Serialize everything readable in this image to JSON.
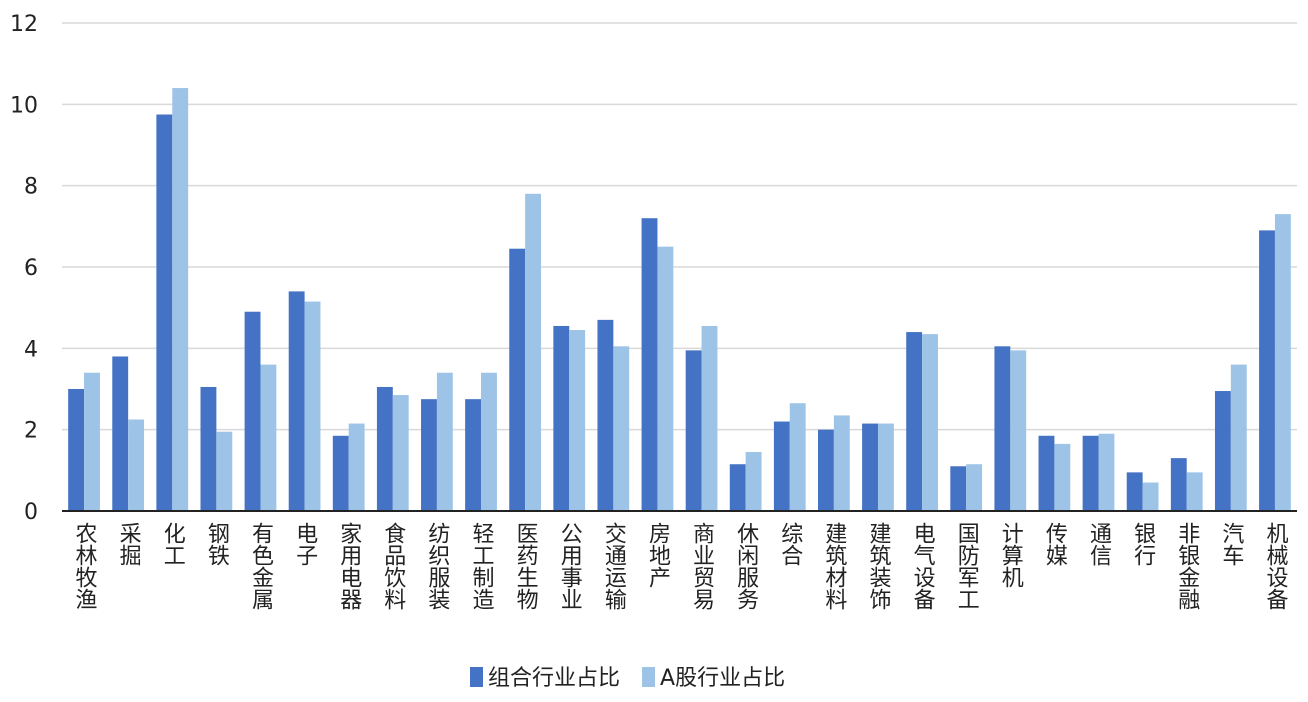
{
  "chart_data": {
    "type": "bar",
    "categories": [
      "农林牧渔",
      "采掘",
      "化工",
      "钢铁",
      "有色金属",
      "电子",
      "家用电器",
      "食品饮料",
      "纺织服装",
      "轻工制造",
      "医药生物",
      "公用事业",
      "交通运输",
      "房地产",
      "商业贸易",
      "休闲服务",
      "综合",
      "建筑材料",
      "建筑装饰",
      "电气设备",
      "国防军工",
      "计算机",
      "传媒",
      "通信",
      "银行",
      "非银金融",
      "汽车",
      "机械设备"
    ],
    "series": [
      {
        "name": "组合行业占比",
        "color": "#4472c4",
        "values": [
          3.0,
          3.8,
          9.75,
          3.05,
          4.9,
          5.4,
          1.85,
          3.05,
          2.75,
          2.75,
          6.45,
          4.55,
          4.7,
          7.2,
          3.95,
          1.15,
          2.2,
          2.0,
          2.15,
          4.4,
          1.1,
          4.05,
          1.85,
          1.85,
          0.95,
          1.3,
          2.95,
          6.9
        ]
      },
      {
        "name": "A股行业占比",
        "color": "#9dc3e6",
        "values": [
          3.4,
          2.25,
          10.4,
          1.95,
          3.6,
          5.15,
          2.15,
          2.85,
          3.4,
          3.4,
          7.8,
          4.45,
          4.05,
          6.5,
          4.55,
          1.45,
          2.65,
          2.35,
          2.15,
          4.35,
          1.15,
          3.95,
          1.65,
          1.9,
          0.7,
          0.95,
          3.6,
          7.3
        ]
      }
    ],
    "ylim": [
      0,
      12
    ],
    "yticks": [
      0,
      2,
      4,
      6,
      8,
      10,
      12
    ],
    "grid": true,
    "legend": "bottom"
  }
}
